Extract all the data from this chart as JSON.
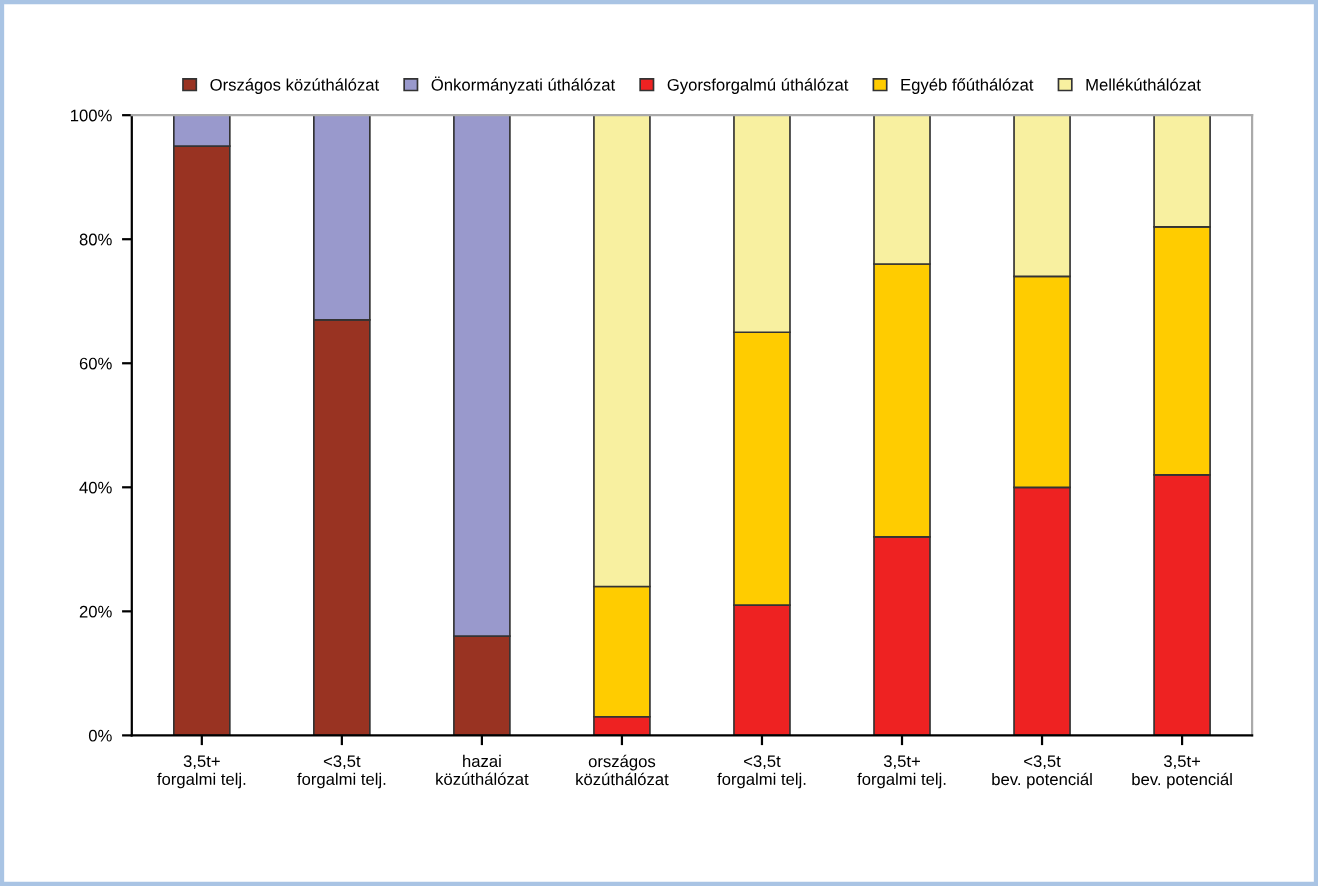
{
  "chart_data": {
    "type": "bar",
    "stacked": true,
    "categories": [
      "3,5t+\nforgalmi telj.",
      "<3,5t\nforgalmi telj.",
      "hazai\nközúthálózat",
      "országos\nközúthálózat",
      "<3,5t\nforgalmi telj.",
      "3,5t+\nforgalmi telj.",
      "<3,5t\nbev. potenciál",
      "3,5t+\nbev. potenciál"
    ],
    "series": [
      {
        "name": "Országos közúthálózat",
        "color": "#993322",
        "values": [
          95,
          67,
          16,
          null,
          null,
          null,
          null,
          null
        ]
      },
      {
        "name": "Önkormányzati úthálózat",
        "color": "#9999cc",
        "values": [
          5,
          33,
          84,
          null,
          null,
          null,
          null,
          null
        ]
      },
      {
        "name": "Gyorsforgalmú úthálózat",
        "color": "#ee2222",
        "values": [
          null,
          null,
          null,
          3,
          21,
          32,
          40,
          42
        ]
      },
      {
        "name": "Egyéb főúthálózat",
        "color": "#ffcc00",
        "values": [
          null,
          null,
          null,
          21,
          44,
          44,
          34,
          40
        ]
      },
      {
        "name": "Mellékúthálózat",
        "color": "#f8f0a0",
        "values": [
          null,
          null,
          null,
          76,
          35,
          24,
          26,
          18
        ]
      }
    ],
    "ylim": [
      0,
      100
    ],
    "yticks": [
      {
        "value": 0,
        "label": "0%"
      },
      {
        "value": 20,
        "label": "20%"
      },
      {
        "value": 40,
        "label": "40%"
      },
      {
        "value": 60,
        "label": "60%"
      },
      {
        "value": 80,
        "label": "80%"
      },
      {
        "value": 100,
        "label": "100%"
      }
    ],
    "grid": false,
    "legend": "top"
  }
}
